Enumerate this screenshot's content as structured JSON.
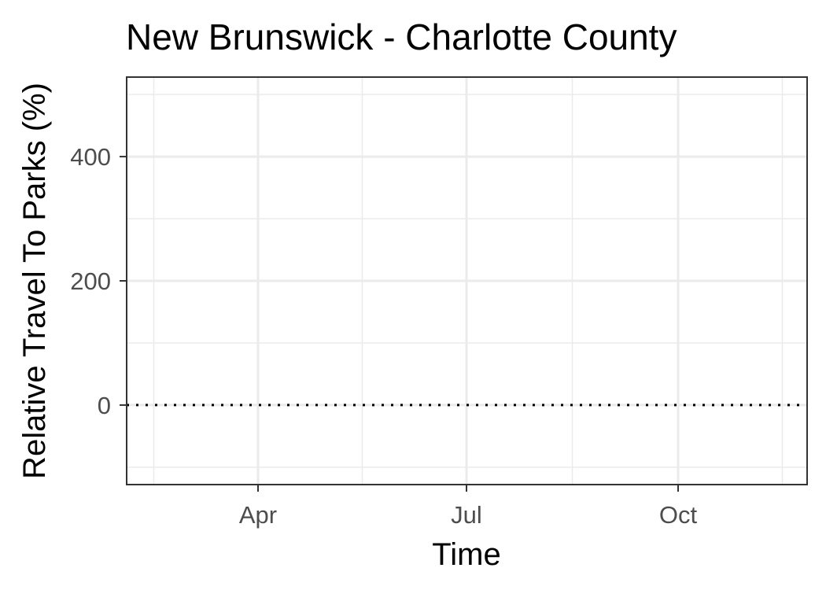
{
  "chart_data": {
    "type": "line",
    "title": "New Brunswick - Charlotte County",
    "xlabel": "Time",
    "ylabel": "Relative Travel To Parks (%)",
    "x_ticks": [
      "Apr",
      "Jul",
      "Oct"
    ],
    "y_ticks": [
      0,
      200,
      400
    ],
    "ylim": [
      -128,
      528
    ],
    "xlim": [
      "2020-02-15",
      "2020-12-31"
    ],
    "reference_line": {
      "y": 0,
      "style": "dotted"
    },
    "series": [],
    "grid": true
  }
}
